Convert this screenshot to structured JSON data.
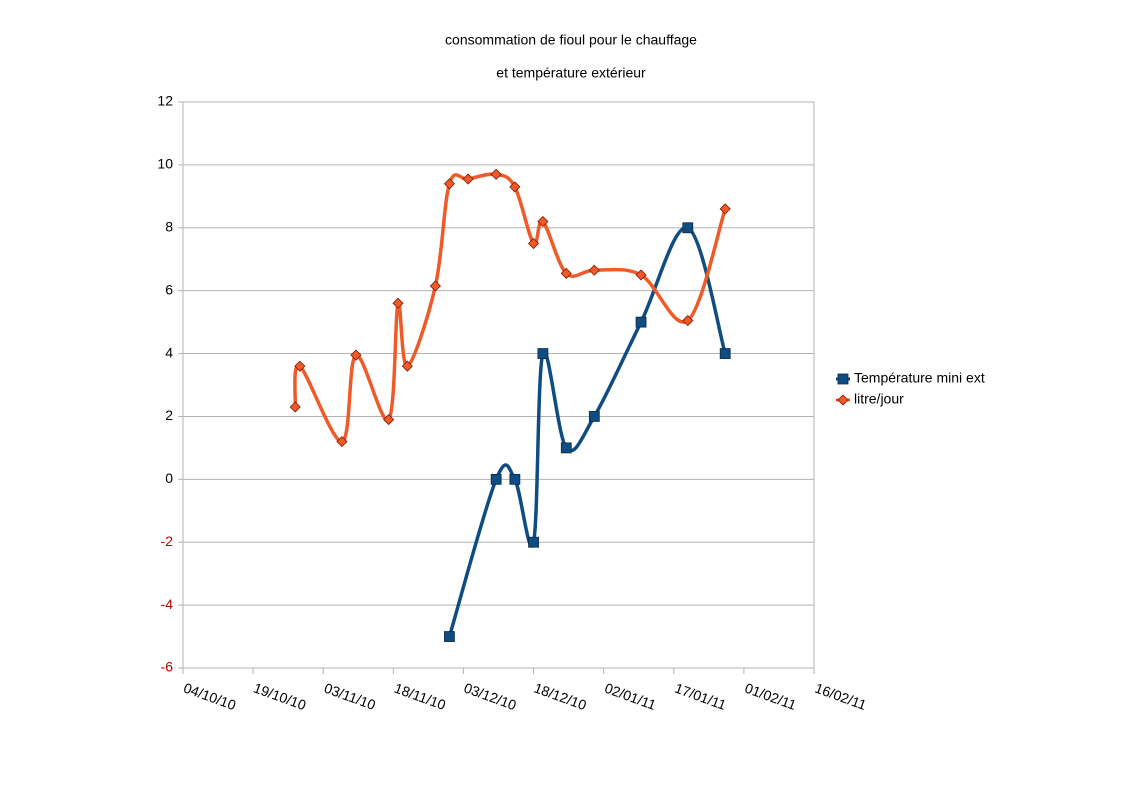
{
  "chart_data": {
    "type": "line",
    "title": [
      "consommation de fioul pour le chauffage",
      "et température extérieur"
    ],
    "xlim": [
      "2010-10-04",
      "2011-02-16"
    ],
    "xticks": [
      {
        "value": "2010-10-04",
        "label": "04/10/10"
      },
      {
        "value": "2010-10-19",
        "label": "19/10/10"
      },
      {
        "value": "2010-11-03",
        "label": "03/11/10"
      },
      {
        "value": "2010-11-18",
        "label": "18/11/10"
      },
      {
        "value": "2010-12-03",
        "label": "03/12/10"
      },
      {
        "value": "2010-12-18",
        "label": "18/12/10"
      },
      {
        "value": "2011-01-02",
        "label": "02/01/11"
      },
      {
        "value": "2011-01-17",
        "label": "17/01/11"
      },
      {
        "value": "2011-02-01",
        "label": "01/02/11"
      },
      {
        "value": "2011-02-16",
        "label": "16/02/11"
      }
    ],
    "ylim": [
      -6,
      12
    ],
    "yticks": [
      -6,
      -4,
      -2,
      0,
      2,
      4,
      6,
      8,
      10,
      12
    ],
    "negative_ytick_color": "#c00000",
    "grid": true,
    "legend": "right",
    "smooth": true,
    "series": [
      {
        "name": "Température mini ext",
        "color": "#0f4c81",
        "marker": "square",
        "x": [
          "2010-11-30",
          "2010-12-10",
          "2010-12-14",
          "2010-12-18",
          "2010-12-20",
          "2010-12-25",
          "2010-12-31",
          "2011-01-10",
          "2011-01-20",
          "2011-01-28"
        ],
        "values": [
          -5,
          0,
          0,
          -2,
          4,
          1,
          2,
          5,
          8,
          4
        ]
      },
      {
        "name": "litre/jour",
        "color": "#f05a28",
        "marker": "diamond",
        "x": [
          "2010-10-28",
          "2010-10-29",
          "2010-11-07",
          "2010-11-10",
          "2010-11-17",
          "2010-11-19",
          "2010-11-21",
          "2010-11-27",
          "2010-11-30",
          "2010-12-04",
          "2010-12-10",
          "2010-12-14",
          "2010-12-18",
          "2010-12-20",
          "2010-12-25",
          "2010-12-31",
          "2011-01-10",
          "2011-01-20",
          "2011-01-28"
        ],
        "values": [
          2.3,
          3.6,
          1.2,
          3.95,
          1.9,
          5.6,
          3.6,
          6.15,
          9.4,
          9.55,
          9.7,
          9.3,
          7.5,
          8.2,
          6.55,
          6.65,
          6.5,
          5.05,
          8.6
        ]
      }
    ]
  }
}
